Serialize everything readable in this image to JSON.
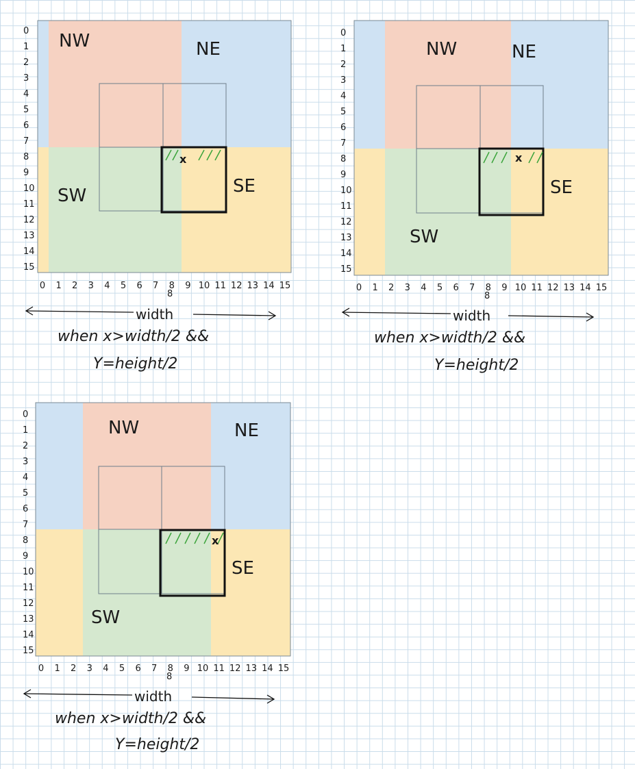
{
  "diagrams": [
    {
      "quadrant_labels": {
        "nw": "NW",
        "ne": "NE",
        "sw": "SW",
        "se": "SE"
      },
      "point_label": "x",
      "width_label": "width",
      "caption_line1": "when x>width/2 &&",
      "caption_line2": "Y=height/2"
    },
    {
      "quadrant_labels": {
        "nw": "NW",
        "ne": "NE",
        "sw": "SW",
        "se": "SE"
      },
      "point_label": "x",
      "width_label": "width",
      "caption_line1": "when x>width/2 &&",
      "caption_line2": "Y=height/2"
    },
    {
      "quadrant_labels": {
        "nw": "NW",
        "ne": "NE",
        "sw": "SW",
        "se": "SE"
      },
      "point_label": "x",
      "width_label": "width",
      "caption_line1": "when x>width/2 &&",
      "caption_line2": "Y=height/2"
    }
  ],
  "row_ticks": [
    "0",
    "1",
    "2",
    "3",
    "4",
    "5",
    "6",
    "7",
    "8",
    "9",
    "10",
    "11",
    "12",
    "13",
    "14",
    "15"
  ],
  "col_ticks": [
    "0",
    "1",
    "2",
    "3",
    "4",
    "5",
    "6",
    "7",
    "8",
    "9",
    "10",
    "11",
    "12",
    "13",
    "14",
    "15"
  ],
  "x_mark_subscript": "8",
  "colors": {
    "nw": "#f6d2c2",
    "ne": "#cfe2f3",
    "sw": "#d5e8cf",
    "se": "#fce7b4",
    "hatch": "#3aa33a",
    "ink": "#111111",
    "grid_outline": "#7a8a96"
  }
}
